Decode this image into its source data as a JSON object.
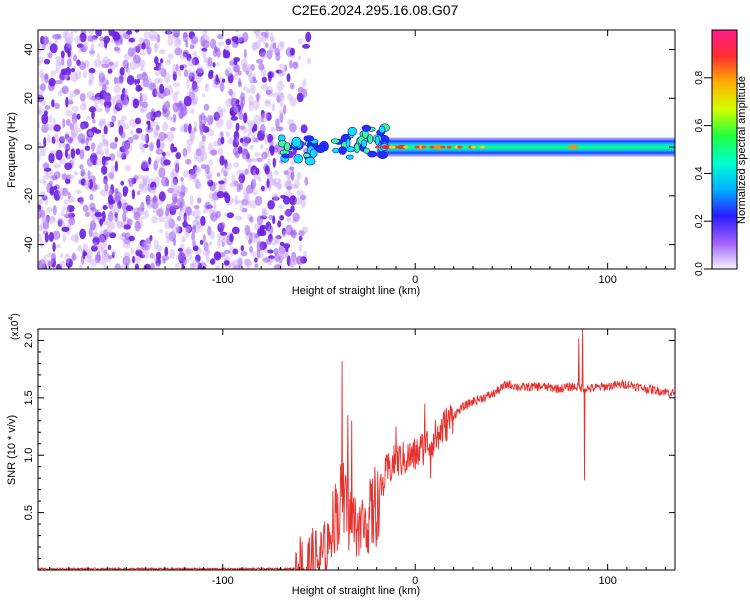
{
  "title": "C2E6.2024.295.16.08.G07",
  "colors": {
    "snr_line": "#e8302c",
    "noise_purple": "#7a2be0",
    "axis": "#000000",
    "colorbar_stops": [
      "#f6f0ff",
      "#a060ff",
      "#2a1bff",
      "#00b0ff",
      "#00ffd0",
      "#20ff40",
      "#d0ff00",
      "#ffb000",
      "#ff3030",
      "#ff1a8a"
    ]
  },
  "chart_data": [
    {
      "type": "heatmap",
      "name": "spectrogram",
      "xlabel": "Height of straight line (km)",
      "ylabel": "Frequency (Hz)",
      "xlim": [
        -196,
        135
      ],
      "ylim": [
        -50,
        48
      ],
      "xticks": [
        -100,
        0,
        100
      ],
      "xtick_labels": [
        "-100",
        "0",
        "100"
      ],
      "yticks": [
        40,
        20,
        0,
        -20,
        -40
      ],
      "ytick_labels": [
        "40",
        "20",
        "0",
        "-20",
        "-40"
      ],
      "colorbar": {
        "label": "Normalized spectral amplitude",
        "range": [
          0,
          1
        ],
        "ticks": [
          0,
          0.2,
          0.4,
          0.6,
          0.8
        ],
        "tick_labels": [
          "0.0",
          "0.2",
          "0.4",
          "0.6",
          "0.8"
        ]
      },
      "noise_region_x": [
        -196,
        -63
      ],
      "signal_band": {
        "x_range": [
          -70,
          135
        ],
        "center_hz": 0,
        "half_width_hz": 4,
        "peaks": [
          {
            "x": -15,
            "amplitude": 0.9
          },
          {
            "x": -7,
            "amplitude": 0.85
          },
          {
            "x": 3,
            "amplitude": 0.75
          },
          {
            "x": 12,
            "amplitude": 0.7
          },
          {
            "x": 82,
            "amplitude": 0.8
          }
        ]
      }
    },
    {
      "type": "line",
      "name": "snr",
      "xlabel": "Height of straight line (km)",
      "ylabel": "SNR (10 * v/v)",
      "y_multiplier": "(x10",
      "y_multiplier_exp": "4",
      "y_multiplier_close": ")",
      "xlim": [
        -196,
        135
      ],
      "ylim": [
        0,
        2.1
      ],
      "xticks": [
        -100,
        0,
        100
      ],
      "xtick_labels": [
        "-100",
        "0",
        "100"
      ],
      "yticks": [
        0.5,
        1.0,
        1.5,
        2.0
      ],
      "ytick_labels": [
        "0.5",
        "1.0",
        "1.5",
        "2.0"
      ],
      "envelope": [
        {
          "x": -196,
          "y": 0.01
        },
        {
          "x": -65,
          "y": 0.01
        },
        {
          "x": -55,
          "y": 0.03
        },
        {
          "x": -47,
          "y": 0.12
        },
        {
          "x": -42,
          "y": 0.45
        },
        {
          "x": -38,
          "y": 0.55
        },
        {
          "x": -34,
          "y": 0.45
        },
        {
          "x": -30,
          "y": 0.35
        },
        {
          "x": -25,
          "y": 0.4
        },
        {
          "x": -20,
          "y": 0.55
        },
        {
          "x": -15,
          "y": 0.85
        },
        {
          "x": -10,
          "y": 0.95
        },
        {
          "x": -5,
          "y": 0.97
        },
        {
          "x": 0,
          "y": 1.0
        },
        {
          "x": 5,
          "y": 1.08
        },
        {
          "x": 10,
          "y": 1.15
        },
        {
          "x": 15,
          "y": 1.25
        },
        {
          "x": 20,
          "y": 1.35
        },
        {
          "x": 25,
          "y": 1.42
        },
        {
          "x": 30,
          "y": 1.47
        },
        {
          "x": 35,
          "y": 1.5
        },
        {
          "x": 40,
          "y": 1.53
        },
        {
          "x": 48,
          "y": 1.62
        },
        {
          "x": 55,
          "y": 1.59
        },
        {
          "x": 65,
          "y": 1.6
        },
        {
          "x": 75,
          "y": 1.58
        },
        {
          "x": 82,
          "y": 1.6
        },
        {
          "x": 90,
          "y": 1.58
        },
        {
          "x": 100,
          "y": 1.6
        },
        {
          "x": 110,
          "y": 1.62
        },
        {
          "x": 120,
          "y": 1.58
        },
        {
          "x": 135,
          "y": 1.54
        }
      ],
      "spikes": [
        {
          "x": -38,
          "y": 1.82
        },
        {
          "x": -35,
          "y": 1.35
        },
        {
          "x": -33,
          "y": 1.3
        },
        {
          "x": -10,
          "y": 1.25
        },
        {
          "x": 5,
          "y": 1.45
        },
        {
          "x": 8,
          "y": 0.8
        },
        {
          "x": 12,
          "y": 1.05
        },
        {
          "x": 85,
          "y": 2.02
        },
        {
          "x": 87,
          "y": 2.1
        },
        {
          "x": 88,
          "y": 0.78
        }
      ]
    }
  ]
}
